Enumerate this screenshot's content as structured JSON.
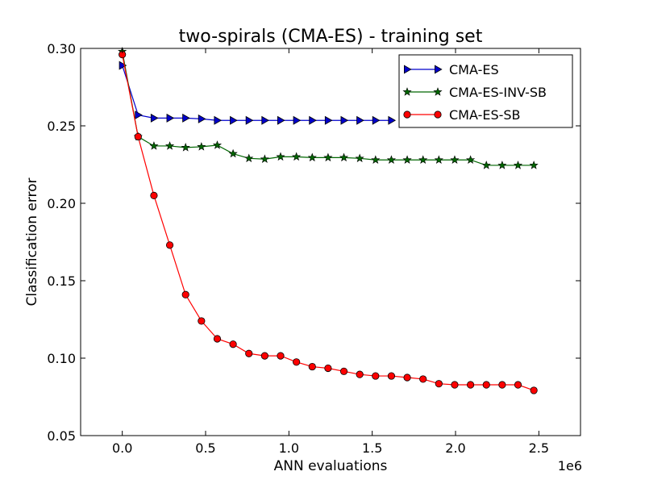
{
  "chart_data": {
    "type": "line",
    "title": "two-spirals (CMA-ES) - training set",
    "xlabel": "ANN evaluations",
    "ylabel": "Classification error",
    "x_offset_label": "1e6",
    "xlim": [
      -0.25,
      2.75
    ],
    "ylim": [
      0.05,
      0.3
    ],
    "xticks": [
      0.0,
      0.5,
      1.0,
      1.5,
      2.0,
      2.5
    ],
    "xtick_labels": [
      "0.0",
      "0.5",
      "1.0",
      "1.5",
      "2.0",
      "2.5"
    ],
    "yticks": [
      0.05,
      0.1,
      0.15,
      0.2,
      0.25,
      0.3
    ],
    "ytick_labels": [
      "0.05",
      "0.10",
      "0.15",
      "0.20",
      "0.25",
      "0.30"
    ],
    "grid": false,
    "legend_position": "top-right",
    "x": [
      0.0,
      0.095,
      0.19,
      0.285,
      0.38,
      0.475,
      0.57,
      0.665,
      0.76,
      0.855,
      0.95,
      1.045,
      1.14,
      1.235,
      1.33,
      1.425,
      1.52,
      1.615,
      1.71,
      1.805,
      1.9,
      1.995,
      2.09,
      2.185,
      2.28,
      2.375,
      2.47
    ],
    "series": [
      {
        "name": "CMA-ES",
        "color": "#0000cc",
        "marker": "triangle-right",
        "x": [
          0.0,
          0.095,
          0.19,
          0.285,
          0.38,
          0.475,
          0.57,
          0.665,
          0.76,
          0.855,
          0.95,
          1.045,
          1.14,
          1.235,
          1.33,
          1.425,
          1.52,
          1.615
        ],
        "values": [
          0.289,
          0.257,
          0.255,
          0.255,
          0.255,
          0.2545,
          0.2535,
          0.2535,
          0.2535,
          0.2535,
          0.2535,
          0.2535,
          0.2535,
          0.2535,
          0.2535,
          0.2535,
          0.2535,
          0.2535
        ]
      },
      {
        "name": "CMA-ES-INV-SB",
        "color": "#006600",
        "marker": "star",
        "x": [
          0.0,
          0.095,
          0.19,
          0.285,
          0.38,
          0.475,
          0.57,
          0.665,
          0.76,
          0.855,
          0.95,
          1.045,
          1.14,
          1.235,
          1.33,
          1.425,
          1.52,
          1.615,
          1.71,
          1.805,
          1.9,
          1.995,
          2.09,
          2.185,
          2.28,
          2.375,
          2.47
        ],
        "values": [
          0.298,
          0.243,
          0.237,
          0.237,
          0.236,
          0.2365,
          0.2375,
          0.232,
          0.229,
          0.2285,
          0.23,
          0.23,
          0.2295,
          0.2295,
          0.2295,
          0.229,
          0.228,
          0.228,
          0.228,
          0.228,
          0.228,
          0.228,
          0.228,
          0.2245,
          0.2245,
          0.2245,
          0.2245
        ]
      },
      {
        "name": "CMA-ES-SB",
        "color": "#ff0000",
        "marker": "circle",
        "x": [
          0.0,
          0.095,
          0.19,
          0.285,
          0.38,
          0.475,
          0.57,
          0.665,
          0.76,
          0.855,
          0.95,
          1.045,
          1.14,
          1.235,
          1.33,
          1.425,
          1.52,
          1.615,
          1.71,
          1.805,
          1.9,
          1.995,
          2.09,
          2.185,
          2.28,
          2.375,
          2.47
        ],
        "values": [
          0.296,
          0.243,
          0.205,
          0.173,
          0.141,
          0.124,
          0.1125,
          0.109,
          0.103,
          0.1015,
          0.1015,
          0.0975,
          0.0945,
          0.0935,
          0.0915,
          0.0895,
          0.0885,
          0.0885,
          0.0875,
          0.0865,
          0.0835,
          0.0828,
          0.0828,
          0.0828,
          0.0828,
          0.0828,
          0.0792
        ]
      }
    ]
  }
}
